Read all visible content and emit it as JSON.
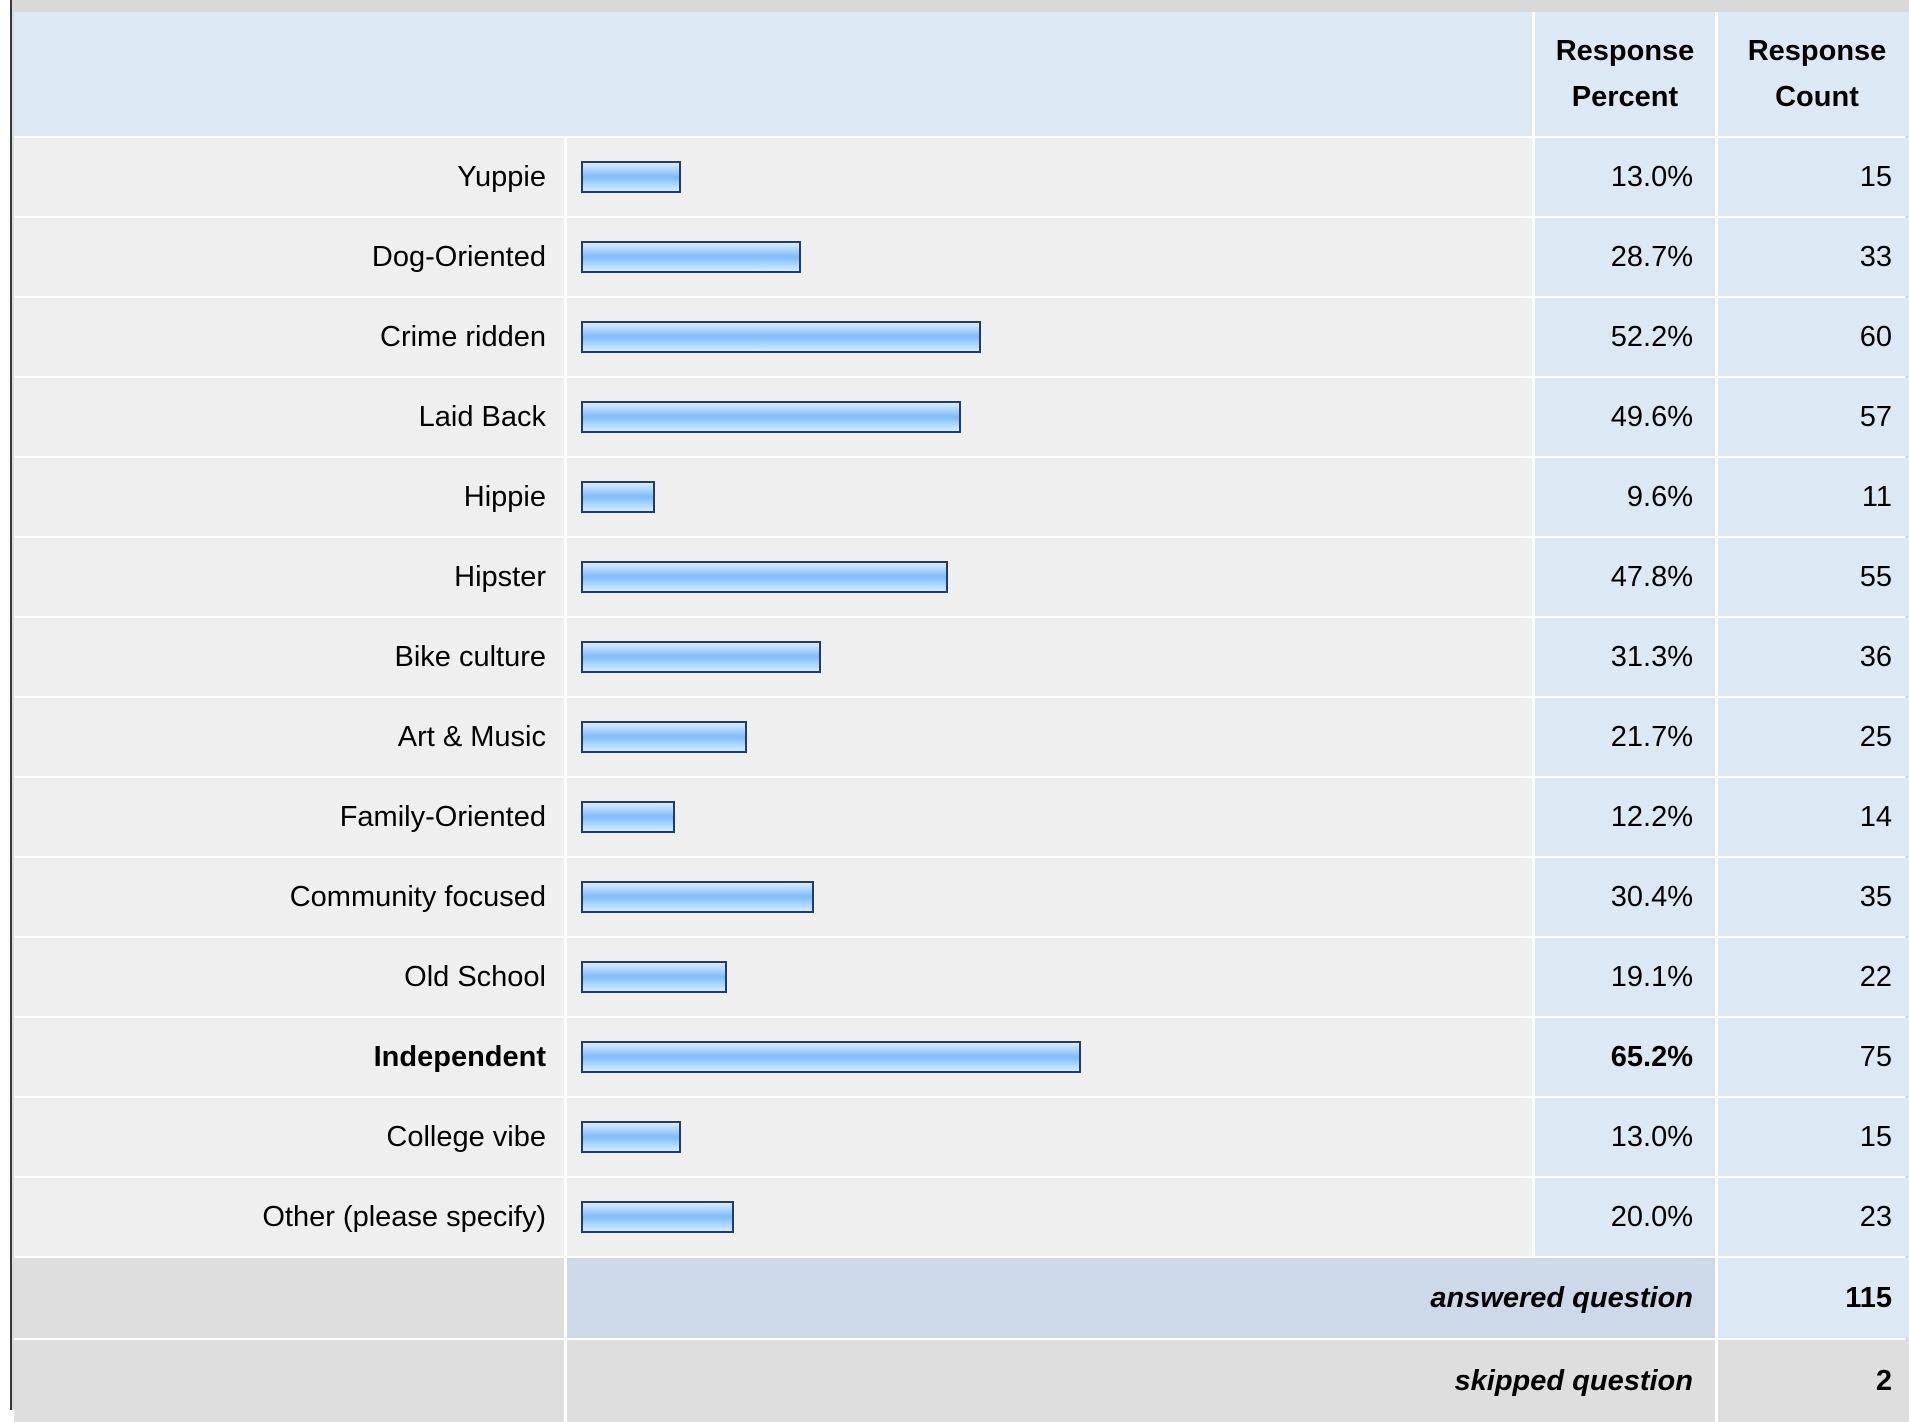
{
  "header": {
    "percent_label": "Response\nPercent",
    "count_label": "Response\nCount"
  },
  "chart_data": {
    "type": "bar",
    "orientation": "horizontal",
    "categories": [
      "Yuppie",
      "Dog-Oriented",
      "Crime ridden",
      "Laid Back",
      "Hippie",
      "Hipster",
      "Bike culture",
      "Art & Music",
      "Family-Oriented",
      "Community focused",
      "Old School",
      "Independent",
      "College vibe",
      "Other (please specify)"
    ],
    "values": [
      13.0,
      28.7,
      52.2,
      49.6,
      9.6,
      47.8,
      31.3,
      21.7,
      12.2,
      30.4,
      19.1,
      65.2,
      13.0,
      20.0
    ],
    "percent_labels": [
      "13.0%",
      "28.7%",
      "52.2%",
      "49.6%",
      "9.6%",
      "47.8%",
      "31.3%",
      "21.7%",
      "12.2%",
      "30.4%",
      "19.1%",
      "65.2%",
      "13.0%",
      "20.0%"
    ],
    "counts": [
      "15",
      "33",
      "60",
      "57",
      "11",
      "55",
      "36",
      "25",
      "14",
      "35",
      "22",
      "75",
      "15",
      "23"
    ],
    "highlighted_index": 11,
    "xlim": [
      0,
      100
    ],
    "bar_color": "#7fbcf5"
  },
  "summary": {
    "answered_label": "answered question",
    "answered_value": "115",
    "skipped_label": "skipped question",
    "skipped_value": "2"
  }
}
